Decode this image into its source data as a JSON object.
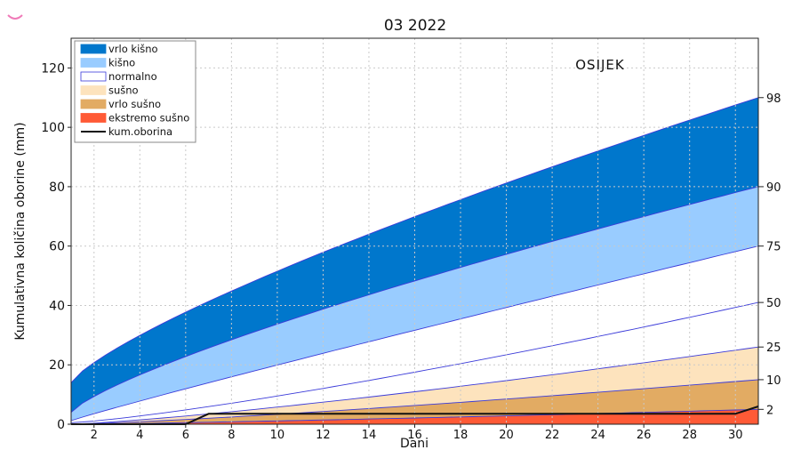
{
  "chart_data": {
    "type": "area",
    "title": "03 2022",
    "station": "OSIJEK",
    "xlabel": "Dani",
    "ylabel": "Kumulativna količina oborine (mm)",
    "xlim": [
      1,
      31
    ],
    "ylim": [
      0,
      130
    ],
    "x_ticks": [
      2,
      4,
      6,
      8,
      10,
      12,
      14,
      16,
      18,
      20,
      22,
      24,
      26,
      28,
      30
    ],
    "y_ticks": [
      0,
      20,
      40,
      60,
      80,
      100,
      120
    ],
    "grid": true,
    "legend_position": "top-left",
    "percentile_curves": [
      {
        "label": "2",
        "start": 0.0,
        "end": 5.0
      },
      {
        "label": "10",
        "start": 0.0,
        "end": 15.0
      },
      {
        "label": "25",
        "start": 0.0,
        "end": 26.0
      },
      {
        "label": "50",
        "start": 0.5,
        "end": 41.0
      },
      {
        "label": "75",
        "start": 1.2,
        "end": 60.0
      },
      {
        "label": "90",
        "start": 4.0,
        "end": 80.0
      },
      {
        "label": "98",
        "start": 14.0,
        "end": 110.0
      }
    ],
    "bands": [
      {
        "name": "vrlo kišno",
        "from": "90",
        "to": "98",
        "color": "#0077cc"
      },
      {
        "name": "kišno",
        "from": "75",
        "to": "90",
        "color": "#99ccff"
      },
      {
        "name": "normalno",
        "from": "25",
        "to": "75",
        "color": "#ffffff"
      },
      {
        "name": "sušno",
        "from": "10",
        "to": "25",
        "color": "#fde3bd"
      },
      {
        "name": "vrlo sušno",
        "from": "2",
        "to": "10",
        "color": "#e2ab63"
      },
      {
        "name": "ekstremo sušno",
        "from": "0",
        "to": "2",
        "color": "#ff5a36"
      }
    ],
    "series": [
      {
        "name": "kum.oborina",
        "color": "#111111",
        "x": [
          1,
          2,
          3,
          4,
          5,
          6,
          7,
          8,
          9,
          10,
          11,
          12,
          13,
          14,
          15,
          16,
          17,
          18,
          19,
          20,
          21,
          22,
          23,
          24,
          25,
          26,
          27,
          28,
          29,
          30,
          31
        ],
        "values": [
          0,
          0,
          0,
          0,
          0,
          0,
          3.5,
          3.5,
          3.5,
          3.5,
          3.5,
          3.5,
          3.5,
          3.5,
          3.5,
          3.5,
          3.5,
          3.5,
          3.5,
          3.5,
          3.5,
          3.5,
          3.5,
          3.5,
          3.5,
          3.5,
          3.5,
          3.5,
          3.5,
          3.5,
          6
        ]
      }
    ],
    "legend": [
      {
        "label": "vrlo kišno",
        "kind": "patch",
        "color": "#0077cc"
      },
      {
        "label": "kišno",
        "kind": "patch",
        "color": "#99ccff"
      },
      {
        "label": "normalno",
        "kind": "patch",
        "color": "#ffffff"
      },
      {
        "label": "sušno",
        "kind": "patch",
        "color": "#fde3bd"
      },
      {
        "label": "vrlo sušno",
        "kind": "patch",
        "color": "#e2ab63"
      },
      {
        "label": "ekstremo sušno",
        "kind": "patch",
        "color": "#ff5a36"
      },
      {
        "label": "kum.oborina",
        "kind": "line",
        "color": "#111111"
      }
    ]
  }
}
